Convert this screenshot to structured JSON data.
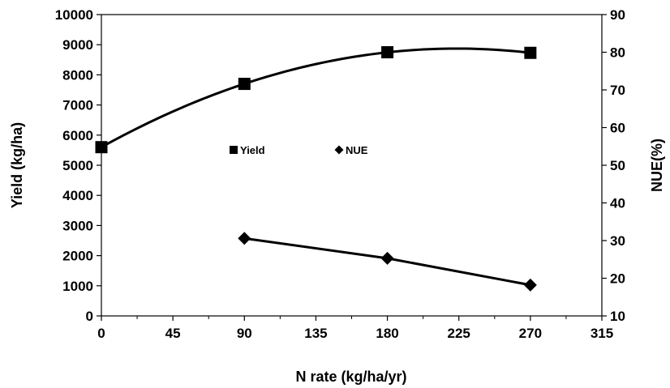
{
  "chart_data": {
    "type": "line",
    "xlabel": "N rate (kg/ha/yr)",
    "ylabel": "Yield (kg/ha)",
    "y2label": "NUE(%)",
    "xlim": [
      0,
      315
    ],
    "ylim": [
      0,
      10000
    ],
    "y2lim": [
      10,
      90
    ],
    "x_ticks": [
      0,
      45,
      90,
      135,
      180,
      225,
      270,
      315
    ],
    "y_ticks": [
      0,
      1000,
      2000,
      3000,
      4000,
      5000,
      6000,
      7000,
      8000,
      9000,
      10000
    ],
    "y2_ticks": [
      10,
      20,
      30,
      40,
      50,
      60,
      70,
      80,
      90
    ],
    "grid": false,
    "legend_position": "center",
    "series": [
      {
        "name": "Yield",
        "axis": "left",
        "marker": "square",
        "color": "#000000",
        "trend": "quadratic",
        "x": [
          0,
          90,
          180,
          270
        ],
        "y": [
          5600,
          7700,
          8750,
          8730
        ]
      },
      {
        "name": "NUE",
        "axis": "right",
        "marker": "diamond",
        "color": "#000000",
        "x": [
          90,
          180,
          270
        ],
        "y": [
          30.6,
          25.3,
          18.2
        ]
      }
    ]
  }
}
